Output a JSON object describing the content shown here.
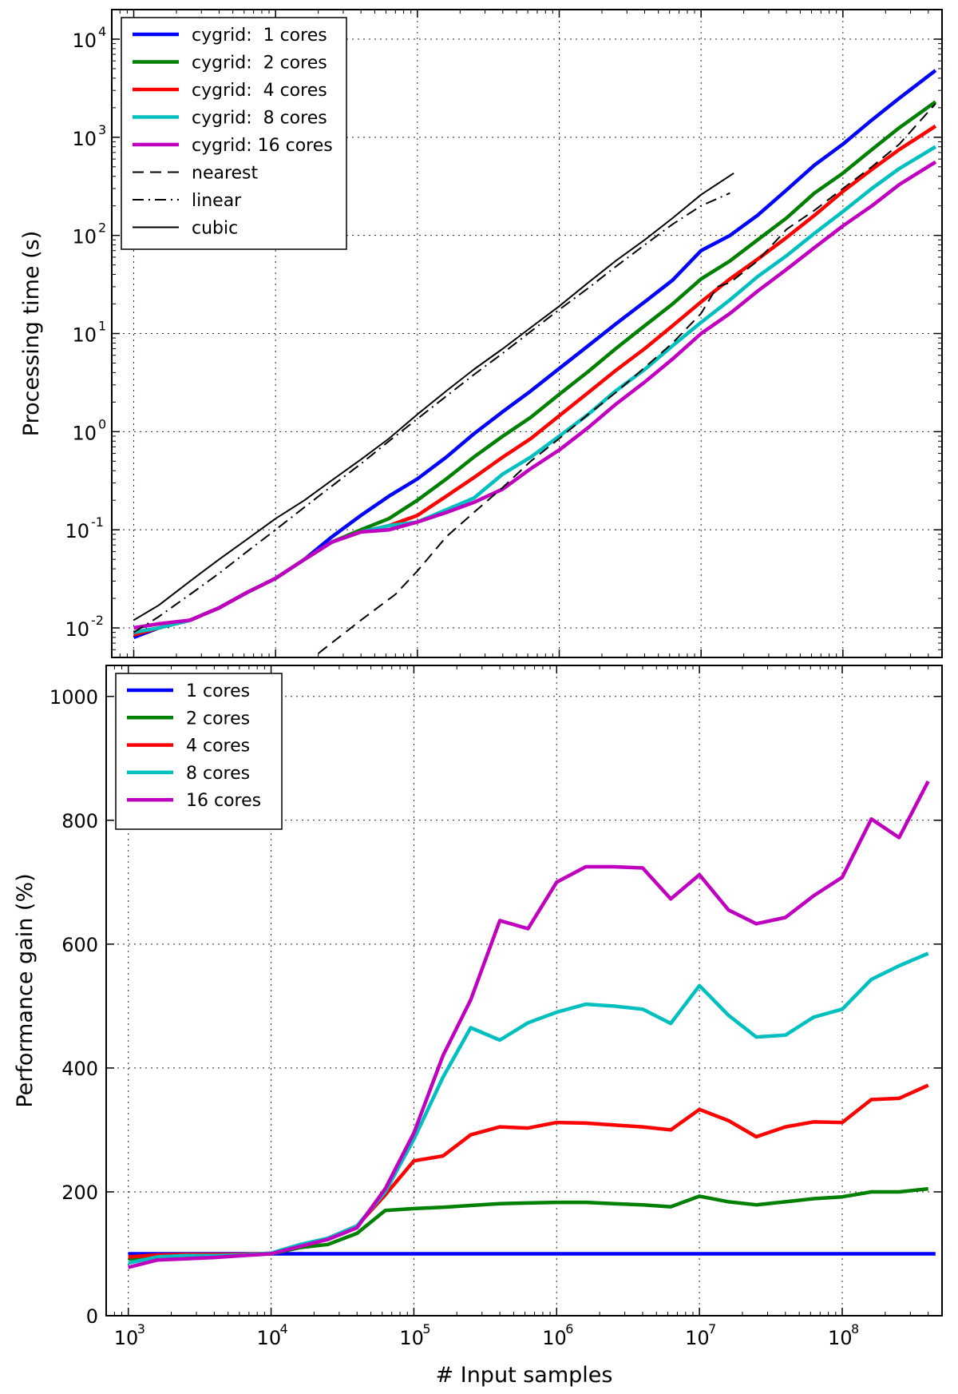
{
  "chart_data": [
    {
      "type": "line",
      "title": "",
      "xlabel": "",
      "ylabel": "Processing time (s)",
      "xscale": "log",
      "yscale": "log",
      "xlim": [
        700,
        500000000
      ],
      "ylim": [
        0.005,
        20000
      ],
      "grid": true,
      "legend_position": "top-left",
      "x_ticks": [
        {
          "value": 1000,
          "base": "10",
          "exp": "3"
        },
        {
          "value": 10000,
          "base": "10",
          "exp": "4"
        },
        {
          "value": 100000,
          "base": "10",
          "exp": "5"
        },
        {
          "value": 1000000,
          "base": "10",
          "exp": "6"
        },
        {
          "value": 10000000,
          "base": "10",
          "exp": "7"
        },
        {
          "value": 100000000,
          "base": "10",
          "exp": "8"
        }
      ],
      "y_ticks": [
        {
          "value": 0.01,
          "base": "10",
          "exp": "-2"
        },
        {
          "value": 0.1,
          "base": "10",
          "exp": "-1"
        },
        {
          "value": 1,
          "base": "10",
          "exp": "0"
        },
        {
          "value": 10,
          "base": "10",
          "exp": "1"
        },
        {
          "value": 100,
          "base": "10",
          "exp": "2"
        },
        {
          "value": 1000,
          "base": "10",
          "exp": "3"
        },
        {
          "value": 10000,
          "base": "10",
          "exp": "4"
        }
      ],
      "series": [
        {
          "name": "cygrid:  1 cores",
          "color": "#0000ff",
          "style": "solid",
          "width": 4.5,
          "x": [
            1000,
            1500,
            2500,
            4000,
            6300,
            10000,
            16000,
            25000,
            40000,
            63000,
            100000,
            160000,
            250000,
            400000,
            630000,
            1000000,
            1600000,
            2500000,
            4000000,
            6300000,
            10000000,
            16000000,
            25000000,
            40000000,
            63000000,
            100000000,
            160000000,
            250000000,
            450000000
          ],
          "y": [
            0.008,
            0.01,
            0.012,
            0.016,
            0.023,
            0.032,
            0.05,
            0.085,
            0.14,
            0.22,
            0.33,
            0.55,
            0.95,
            1.6,
            2.6,
            4.4,
            7.5,
            12.5,
            21,
            35,
            70,
            100,
            160,
            290,
            520,
            850,
            1500,
            2500,
            4800
          ]
        },
        {
          "name": "cygrid:  2 cores",
          "color": "#008000",
          "style": "solid",
          "width": 4.5,
          "x": [
            1000,
            1500,
            2500,
            4000,
            6300,
            10000,
            16000,
            25000,
            40000,
            63000,
            100000,
            160000,
            250000,
            400000,
            630000,
            1000000,
            1600000,
            2500000,
            4000000,
            6300000,
            10000000,
            16000000,
            25000000,
            40000000,
            63000000,
            100000000,
            160000000,
            250000000,
            450000000
          ],
          "y": [
            0.0085,
            0.01,
            0.012,
            0.016,
            0.023,
            0.032,
            0.05,
            0.075,
            0.1,
            0.13,
            0.2,
            0.33,
            0.55,
            0.9,
            1.4,
            2.4,
            4.1,
            7,
            12,
            20,
            36,
            55,
            90,
            150,
            270,
            430,
            750,
            1250,
            2300
          ]
        },
        {
          "name": "cygrid:  4 cores",
          "color": "#ff0000",
          "style": "solid",
          "width": 4.5,
          "x": [
            1000,
            1500,
            2500,
            4000,
            6300,
            10000,
            16000,
            25000,
            40000,
            63000,
            100000,
            160000,
            250000,
            400000,
            630000,
            1000000,
            1600000,
            2500000,
            4000000,
            6300000,
            10000000,
            16000000,
            25000000,
            40000000,
            63000000,
            100000000,
            160000000,
            250000000,
            450000000
          ],
          "y": [
            0.0085,
            0.01,
            0.012,
            0.016,
            0.023,
            0.032,
            0.05,
            0.075,
            0.095,
            0.11,
            0.14,
            0.22,
            0.34,
            0.55,
            0.85,
            1.45,
            2.5,
            4.2,
            7,
            12,
            21,
            36,
            57,
            95,
            160,
            280,
            470,
            750,
            1300
          ]
        },
        {
          "name": "cygrid:  8 cores",
          "color": "#00bfbf",
          "style": "solid",
          "width": 4.5,
          "x": [
            1000,
            1500,
            2500,
            4000,
            6300,
            10000,
            16000,
            25000,
            40000,
            63000,
            100000,
            160000,
            250000,
            400000,
            630000,
            1000000,
            1600000,
            2500000,
            4000000,
            6300000,
            10000000,
            16000000,
            25000000,
            40000000,
            63000000,
            100000000,
            160000000,
            250000000,
            450000000
          ],
          "y": [
            0.009,
            0.01,
            0.012,
            0.016,
            0.023,
            0.032,
            0.05,
            0.075,
            0.095,
            0.11,
            0.12,
            0.16,
            0.21,
            0.37,
            0.55,
            0.9,
            1.5,
            2.6,
            4.3,
            7.5,
            13,
            22,
            38,
            62,
            105,
            175,
            300,
            480,
            800
          ]
        },
        {
          "name": "cygrid: 16 cores",
          "color": "#bf00bf",
          "style": "solid",
          "width": 4.5,
          "x": [
            1000,
            1500,
            2500,
            4000,
            6300,
            10000,
            16000,
            25000,
            40000,
            63000,
            100000,
            160000,
            250000,
            400000,
            630000,
            1000000,
            1600000,
            2500000,
            4000000,
            6300000,
            10000000,
            16000000,
            25000000,
            40000000,
            63000000,
            100000000,
            160000000,
            250000000,
            450000000
          ],
          "y": [
            0.01,
            0.011,
            0.012,
            0.016,
            0.023,
            0.032,
            0.05,
            0.075,
            0.095,
            0.1,
            0.12,
            0.15,
            0.19,
            0.26,
            0.42,
            0.65,
            1.1,
            1.9,
            3.2,
            5.5,
            10,
            16,
            27,
            45,
            75,
            125,
            200,
            330,
            560
          ]
        },
        {
          "name": "nearest",
          "color": "#000000",
          "style": "dashed",
          "width": 2,
          "x": [
            20000,
            40000,
            70000,
            100000,
            160000,
            250000,
            400000,
            630000,
            1000000,
            1600000,
            2500000,
            4000000,
            6300000,
            10000000,
            13000000,
            16000000,
            25000000,
            40000000,
            63000000,
            100000000,
            160000000,
            250000000,
            450000000
          ],
          "y": [
            0.0055,
            0.012,
            0.022,
            0.038,
            0.085,
            0.15,
            0.27,
            0.5,
            0.85,
            1.5,
            2.5,
            4.5,
            8,
            16,
            30,
            33,
            55,
            115,
            180,
            300,
            500,
            850,
            2200
          ]
        },
        {
          "name": "linear",
          "color": "#000000",
          "style": "dashdot",
          "width": 2,
          "x": [
            1000,
            1500,
            2500,
            4000,
            6300,
            10000,
            16000,
            25000,
            40000,
            63000,
            100000,
            160000,
            250000,
            400000,
            630000,
            1000000,
            1600000,
            2500000,
            4000000,
            6300000,
            10000000,
            16000000
          ],
          "y": [
            0.009,
            0.013,
            0.022,
            0.036,
            0.06,
            0.1,
            0.17,
            0.28,
            0.47,
            0.8,
            1.35,
            2.3,
            3.8,
            6.3,
            10.5,
            17.5,
            29,
            48,
            80,
            130,
            200,
            270
          ]
        },
        {
          "name": "cubic",
          "color": "#000000",
          "style": "solid",
          "width": 2,
          "x": [
            1000,
            1500,
            2500,
            4000,
            6300,
            10000,
            16000,
            25000,
            40000,
            63000,
            100000,
            160000,
            250000,
            400000,
            630000,
            1000000,
            1600000,
            2500000,
            4000000,
            6300000,
            10000000,
            17000000
          ],
          "y": [
            0.012,
            0.017,
            0.03,
            0.05,
            0.08,
            0.13,
            0.2,
            0.32,
            0.52,
            0.85,
            1.5,
            2.6,
            4.3,
            7,
            11.5,
            19,
            33,
            55,
            90,
            150,
            260,
            430
          ]
        }
      ]
    },
    {
      "type": "line",
      "title": "",
      "xlabel": "# Input samples",
      "ylabel": "Performance gain (%)",
      "xscale": "log",
      "yscale": "linear",
      "xlim": [
        700,
        500000000
      ],
      "ylim": [
        0,
        1050
      ],
      "grid": true,
      "legend_position": "top-left",
      "x_ticks": [
        {
          "value": 1000,
          "base": "10",
          "exp": "3"
        },
        {
          "value": 10000,
          "base": "10",
          "exp": "4"
        },
        {
          "value": 100000,
          "base": "10",
          "exp": "5"
        },
        {
          "value": 1000000,
          "base": "10",
          "exp": "6"
        },
        {
          "value": 10000000,
          "base": "10",
          "exp": "7"
        },
        {
          "value": 100000000,
          "base": "10",
          "exp": "8"
        }
      ],
      "y_ticks": [
        {
          "value": 0,
          "label": "0"
        },
        {
          "value": 200,
          "label": "200"
        },
        {
          "value": 400,
          "label": "400"
        },
        {
          "value": 600,
          "label": "600"
        },
        {
          "value": 800,
          "label": "800"
        },
        {
          "value": 1000,
          "label": "1000"
        }
      ],
      "series": [
        {
          "name": "1 cores",
          "color": "#0000ff",
          "style": "solid",
          "width": 4.5,
          "x": [
            1000,
            450000000
          ],
          "y": [
            100,
            100
          ]
        },
        {
          "name": "2 cores",
          "color": "#008000",
          "style": "solid",
          "width": 4.5,
          "x": [
            1000,
            1600,
            2500,
            4000,
            6300,
            10000,
            16000,
            25000,
            40000,
            63000,
            100000,
            160000,
            250000,
            400000,
            630000,
            1000000,
            1600000,
            2500000,
            4000000,
            6300000,
            10000000,
            16000000,
            25000000,
            40000000,
            63000000,
            100000000,
            160000000,
            250000000,
            400000000
          ],
          "y": [
            92,
            94,
            96,
            97,
            98,
            100,
            110,
            115,
            133,
            170,
            173,
            175,
            178,
            181,
            182,
            183,
            183,
            181,
            179,
            176,
            193,
            184,
            179,
            184,
            189,
            192,
            200,
            200,
            205
          ]
        },
        {
          "name": "4 cores",
          "color": "#ff0000",
          "style": "solid",
          "width": 4.5,
          "x": [
            1000,
            1600,
            2500,
            4000,
            6300,
            10000,
            16000,
            25000,
            40000,
            63000,
            100000,
            160000,
            250000,
            400000,
            630000,
            1000000,
            1600000,
            2500000,
            4000000,
            6300000,
            10000000,
            16000000,
            25000000,
            40000000,
            63000000,
            100000000,
            160000000,
            250000000,
            400000000
          ],
          "y": [
            95,
            98,
            99,
            99,
            99,
            101,
            112,
            125,
            145,
            195,
            250,
            258,
            292,
            305,
            303,
            312,
            311,
            308,
            305,
            300,
            333,
            315,
            289,
            305,
            313,
            312,
            349,
            351,
            372
          ]
        },
        {
          "name": "8 cores",
          "color": "#00bfbf",
          "style": "solid",
          "width": 4.5,
          "x": [
            1000,
            1600,
            2500,
            4000,
            6300,
            10000,
            16000,
            25000,
            40000,
            63000,
            100000,
            160000,
            250000,
            400000,
            630000,
            1000000,
            1600000,
            2500000,
            4000000,
            6300000,
            10000000,
            16000000,
            25000000,
            40000000,
            63000000,
            100000000,
            160000000,
            250000000,
            400000000
          ],
          "y": [
            85,
            95,
            97,
            97,
            98,
            101,
            115,
            125,
            145,
            200,
            285,
            385,
            465,
            445,
            473,
            490,
            503,
            500,
            495,
            472,
            533,
            485,
            450,
            453,
            482,
            495,
            543,
            565,
            585
          ]
        },
        {
          "name": "16 cores",
          "color": "#bf00bf",
          "style": "solid",
          "width": 4.5,
          "x": [
            1000,
            1600,
            2500,
            4000,
            6300,
            10000,
            16000,
            25000,
            40000,
            63000,
            100000,
            160000,
            250000,
            400000,
            630000,
            1000000,
            1600000,
            2500000,
            4000000,
            6300000,
            10000000,
            16000000,
            25000000,
            40000000,
            63000000,
            100000000,
            160000000,
            250000000,
            400000000
          ],
          "y": [
            78,
            90,
            92,
            94,
            97,
            100,
            112,
            123,
            142,
            205,
            295,
            420,
            510,
            638,
            625,
            700,
            725,
            725,
            723,
            673,
            712,
            655,
            633,
            643,
            678,
            708,
            802,
            772,
            863
          ]
        }
      ]
    }
  ]
}
